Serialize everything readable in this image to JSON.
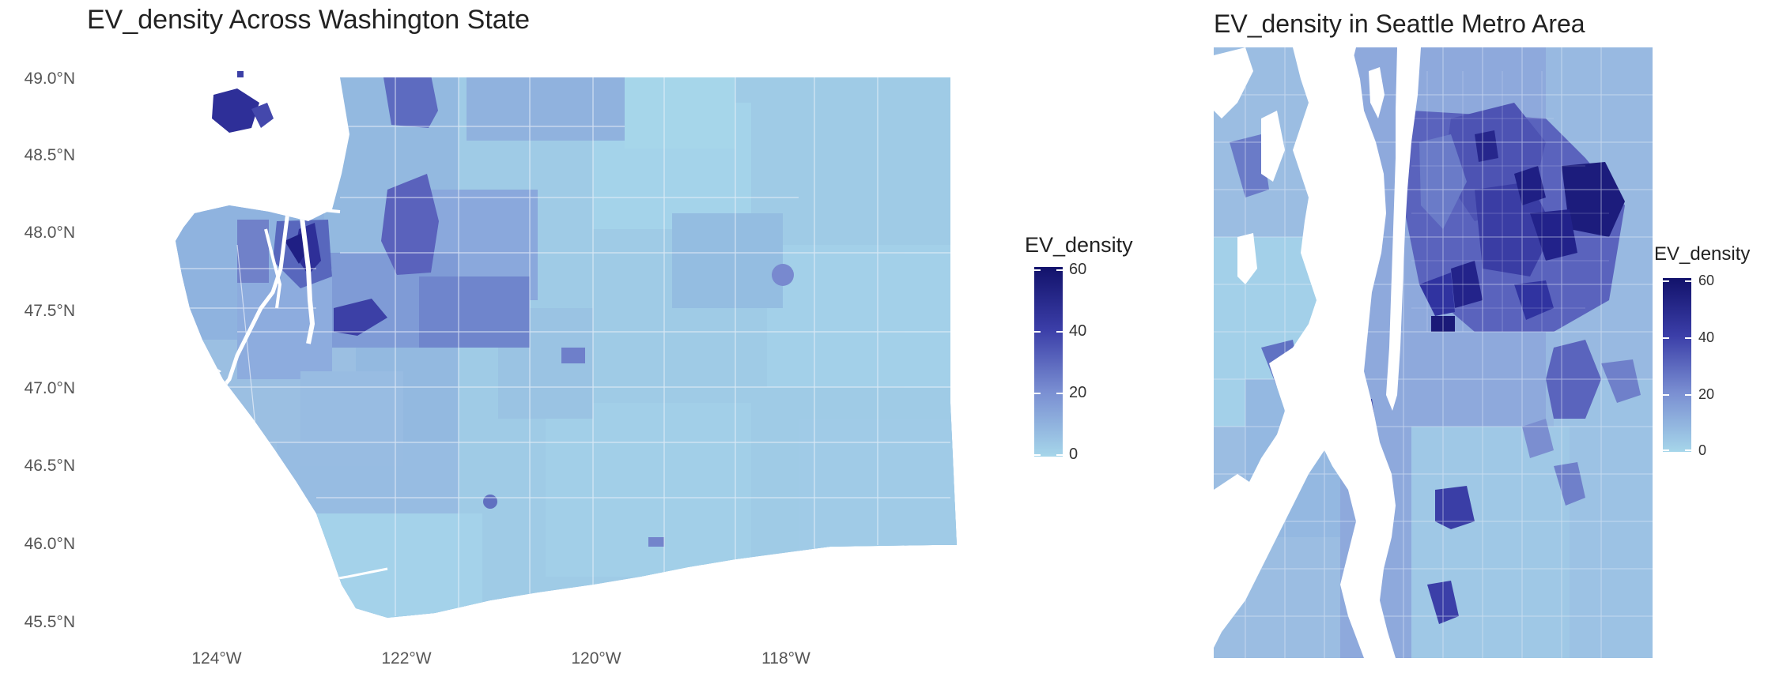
{
  "colors": {
    "low": "#a6d6ea",
    "high": "#12126b",
    "water": "#ffffff",
    "border": "#e8eef8"
  },
  "state_map": {
    "title": "EV_density Across Washington State",
    "lat_ticks": [
      "49.0°N",
      "48.5°N",
      "48.0°N",
      "47.5°N",
      "47.0°N",
      "46.5°N",
      "46.0°N",
      "45.5°N"
    ],
    "lon_ticks": [
      "124°W",
      "122°W",
      "120°W",
      "118°W"
    ],
    "legend": {
      "title": "EV_density",
      "labels": [
        "60",
        "40",
        "20",
        "0"
      ],
      "range": [
        0,
        60
      ]
    }
  },
  "metro_map": {
    "title": "EV_density in Seattle Metro Area",
    "legend": {
      "title": "EV_density",
      "labels": [
        "60",
        "40",
        "20",
        "0"
      ],
      "range": [
        0,
        60
      ]
    }
  }
}
